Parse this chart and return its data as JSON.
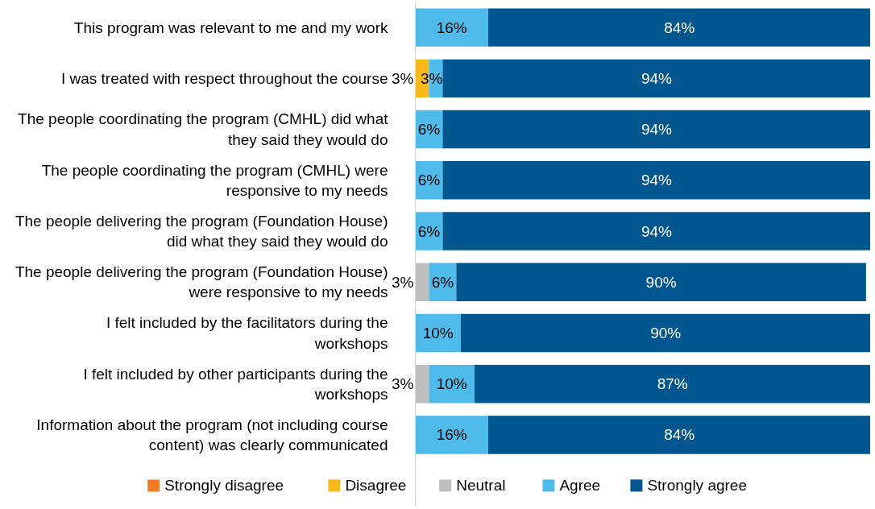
{
  "chart_data": {
    "type": "bar",
    "orientation": "horizontal",
    "stacked": true,
    "categories": [
      "This program was relevant to me and my work",
      "I was treated with respect throughout the course",
      "The people coordinating the program (CMHL) did what they said they would do",
      "The people coordinating the program (CMHL) were responsive to my needs",
      "The people delivering the program (Foundation House) did what they said they would do",
      "The people delivering the program (Foundation House) were responsive to my needs",
      "I felt included by the facilitators during the workshops",
      "I felt included by other participants during the workshops",
      "Information about the program (not including course content) was clearly communicated"
    ],
    "series": [
      {
        "name": "Strongly disagree",
        "color": "#f47b20",
        "values": [
          null,
          null,
          null,
          null,
          null,
          null,
          null,
          null,
          null
        ]
      },
      {
        "name": "Disagree",
        "color": "#fbb917",
        "values": [
          null,
          3,
          null,
          null,
          null,
          null,
          null,
          null,
          null
        ],
        "value_labels": [
          null,
          "3%",
          null,
          null,
          null,
          null,
          null,
          null,
          null
        ]
      },
      {
        "name": "Neutral",
        "color": "#bfbfbf",
        "values": [
          null,
          null,
          null,
          null,
          null,
          3,
          null,
          3,
          null
        ],
        "value_labels": [
          null,
          null,
          null,
          null,
          null,
          "3%",
          null,
          "3%",
          null
        ]
      },
      {
        "name": "Agree",
        "color": "#4fbbeb",
        "values": [
          16,
          3,
          6,
          6,
          6,
          6,
          10,
          10,
          16
        ],
        "value_labels": [
          "16%",
          "3%",
          "6%",
          "6%",
          "6%",
          "6%",
          "10%",
          "10%",
          "16%"
        ]
      },
      {
        "name": "Strongly agree",
        "color": "#00568f",
        "values": [
          84,
          94,
          94,
          94,
          94,
          90,
          90,
          87,
          84
        ],
        "value_labels": [
          "84%",
          "94%",
          "94%",
          "94%",
          "94%",
          "90%",
          "90%",
          "87%",
          "84%"
        ]
      }
    ],
    "legend": "bottom",
    "tick_labels": "y"
  }
}
